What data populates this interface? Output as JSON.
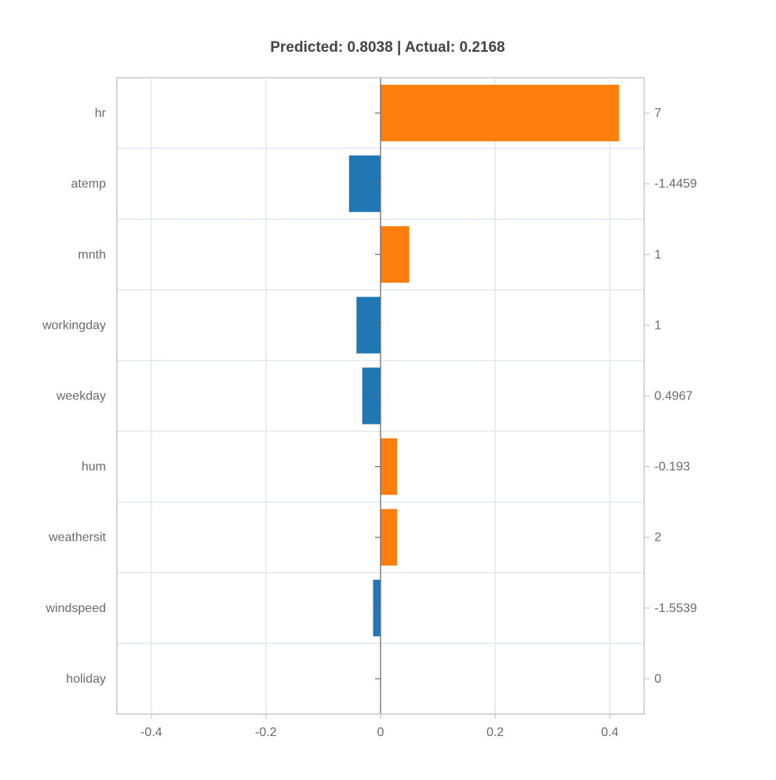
{
  "chart_data": {
    "type": "bar",
    "orientation": "horizontal",
    "title": "Predicted: 0.8038 | Actual: 0.2168",
    "categories": [
      "hr",
      "atemp",
      "mnth",
      "workingday",
      "weekday",
      "hum",
      "weathersit",
      "windspeed",
      "holiday"
    ],
    "values": [
      0.416,
      -0.055,
      0.05,
      -0.042,
      -0.032,
      0.029,
      0.029,
      -0.013,
      0.0
    ],
    "feature_values": [
      "7",
      "-1.4459",
      "1",
      "1",
      "0.4967",
      "-0.193",
      "2",
      "-1.5539",
      "0"
    ],
    "xlim": [
      -0.46,
      0.46
    ],
    "xticks": [
      -0.4,
      -0.2,
      0,
      0.2,
      0.4
    ],
    "xtick_labels": [
      "-0.4",
      "-0.2",
      "0",
      "0.2",
      "0.4"
    ],
    "grid": true,
    "colors": {
      "positive": "#ff7f0e",
      "negative": "#1f77b4",
      "grid": "#e3e7ee",
      "axis": "#c8c8c8",
      "zero_line": "#6e6e6e",
      "text": "#6b6b6b",
      "title": "#444444"
    }
  }
}
